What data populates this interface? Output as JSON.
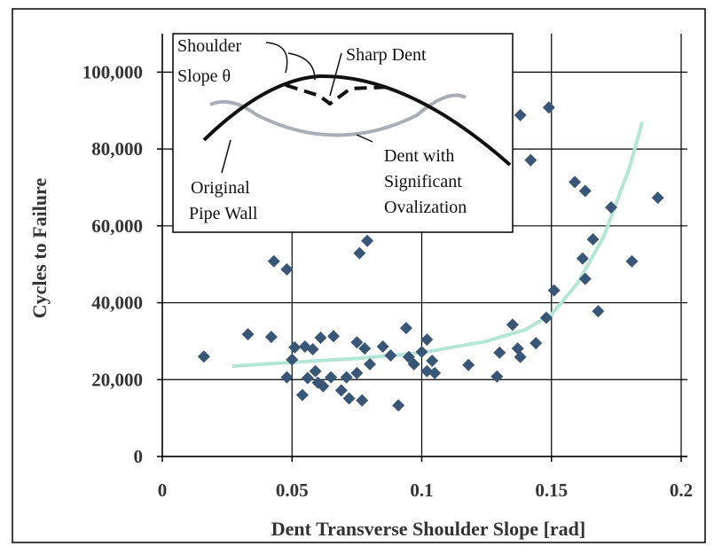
{
  "chart_data": {
    "type": "scatter",
    "x_label": "Dent Transverse Shoulder Slope [rad]",
    "y_label": "Cycles to Failure",
    "xlim": [
      0,
      0.2
    ],
    "ylim": [
      0,
      110000
    ],
    "xticks": [
      0,
      0.05,
      0.1,
      0.15,
      0.2
    ],
    "yticks": [
      0,
      {
        "value": 20000,
        "label": "20,000"
      },
      {
        "value": 40000,
        "label": "40,000"
      },
      {
        "value": 60000,
        "label": "60,000"
      },
      {
        "value": 80000,
        "label": "80,000"
      },
      {
        "value": 100000,
        "label": "100,000"
      }
    ],
    "grid": true,
    "color": "#3a5676",
    "x": [
      0.016,
      0.033,
      0.042,
      0.043,
      0.048,
      0.048,
      0.05,
      0.051,
      0.054,
      0.055,
      0.056,
      0.058,
      0.059,
      0.061,
      0.06,
      0.062,
      0.065,
      0.066,
      0.069,
      0.071,
      0.072,
      0.075,
      0.075,
      0.076,
      0.079,
      0.077,
      0.078,
      0.08,
      0.085,
      0.088,
      0.091,
      0.094,
      0.095,
      0.097,
      0.1,
      0.102,
      0.102,
      0.104,
      0.105,
      0.118,
      0.129,
      0.13,
      0.135,
      0.137,
      0.138,
      0.138,
      0.142,
      0.144,
      0.148,
      0.149,
      0.151,
      0.159,
      0.162,
      0.163,
      0.163,
      0.166,
      0.168,
      0.173,
      0.181,
      0.191
    ],
    "values": [
      26000,
      31800,
      31100,
      50800,
      48700,
      20600,
      25200,
      28400,
      16000,
      28600,
      20400,
      27900,
      22200,
      30900,
      19200,
      18300,
      20600,
      31300,
      17200,
      20600,
      15100,
      29700,
      21700,
      52900,
      56100,
      14600,
      28100,
      24000,
      28600,
      26300,
      13300,
      33400,
      25900,
      24000,
      27200,
      30400,
      22200,
      24900,
      21700,
      23800,
      20800,
      27000,
      34300,
      28100,
      88800,
      25900,
      77100,
      29500,
      36100,
      90800,
      43200,
      71400,
      51500,
      69100,
      46200,
      56500,
      37800,
      64800,
      50800,
      67300
    ],
    "trend": {
      "color": "#b4e6d6",
      "x": [
        0.027,
        0.05,
        0.075,
        0.1,
        0.125,
        0.14,
        0.15,
        0.16,
        0.17,
        0.18,
        0.185
      ],
      "values": [
        23500,
        24500,
        25500,
        27000,
        30000,
        33000,
        37000,
        45000,
        57000,
        75000,
        87000
      ]
    },
    "annotations": [
      "Shoulder",
      "Slope θ",
      "Sharp Dent",
      "Original",
      "Pipe Wall",
      "Dent with",
      "Significant",
      "Ovalization"
    ]
  }
}
